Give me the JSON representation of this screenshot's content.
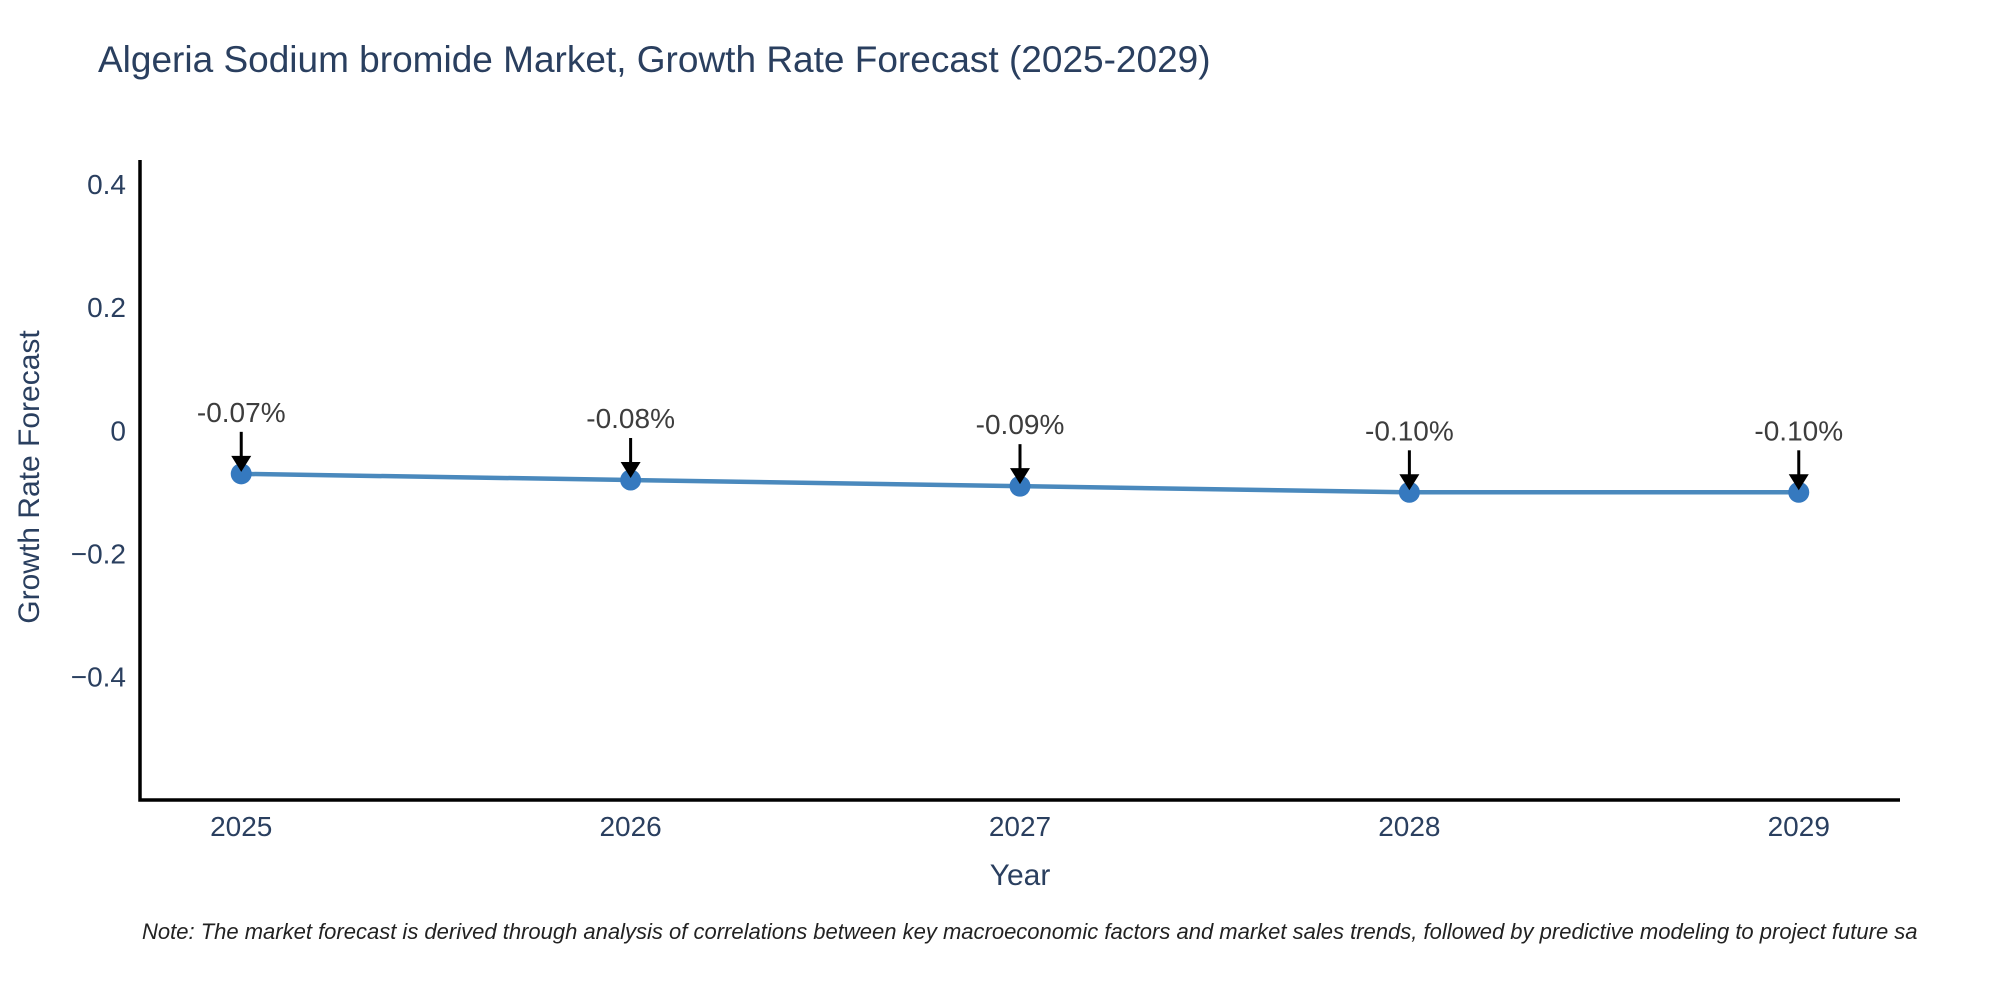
{
  "title": "Algeria Sodium bromide Market, Growth Rate Forecast (2025-2029)",
  "note": "Note: The market forecast is derived through analysis of correlations between key macroeconomic factors and market sales trends, followed by predictive modeling to project future sa",
  "chart_data": {
    "type": "line",
    "title": "Algeria Sodium bromide Market, Growth Rate Forecast (2025-2029)",
    "xlabel": "Year",
    "ylabel": "Growth Rate Forecast",
    "x": [
      2025,
      2026,
      2027,
      2028,
      2029
    ],
    "series": [
      {
        "name": "Growth Rate Forecast",
        "values": [
          -0.07,
          -0.08,
          -0.09,
          -0.1,
          -0.1
        ]
      }
    ],
    "point_labels": [
      "-0.07%",
      "-0.08%",
      "-0.09%",
      "-0.10%",
      "-0.10%"
    ],
    "xticks": [
      2025,
      2026,
      2027,
      2028,
      2029
    ],
    "xtick_labels": [
      "2025",
      "2026",
      "2027",
      "2028",
      "2029"
    ],
    "yticks": [
      0.4,
      0.2,
      0,
      -0.2,
      -0.4
    ],
    "ytick_labels": [
      "0.4",
      "0.2",
      "0",
      "−0.2",
      "−0.4"
    ],
    "xlim": [
      2024.74,
      2029.26
    ],
    "ylim": [
      -0.6,
      0.44
    ],
    "grid": false,
    "legend": false,
    "line_color": "#4a89bd",
    "marker_color": "#3579bf",
    "axis_color": "#000000",
    "tick_text_color": "#2a3f5f",
    "annotation_text_color": "#3d3d3d",
    "annotation_arrow_color": "#000000"
  }
}
